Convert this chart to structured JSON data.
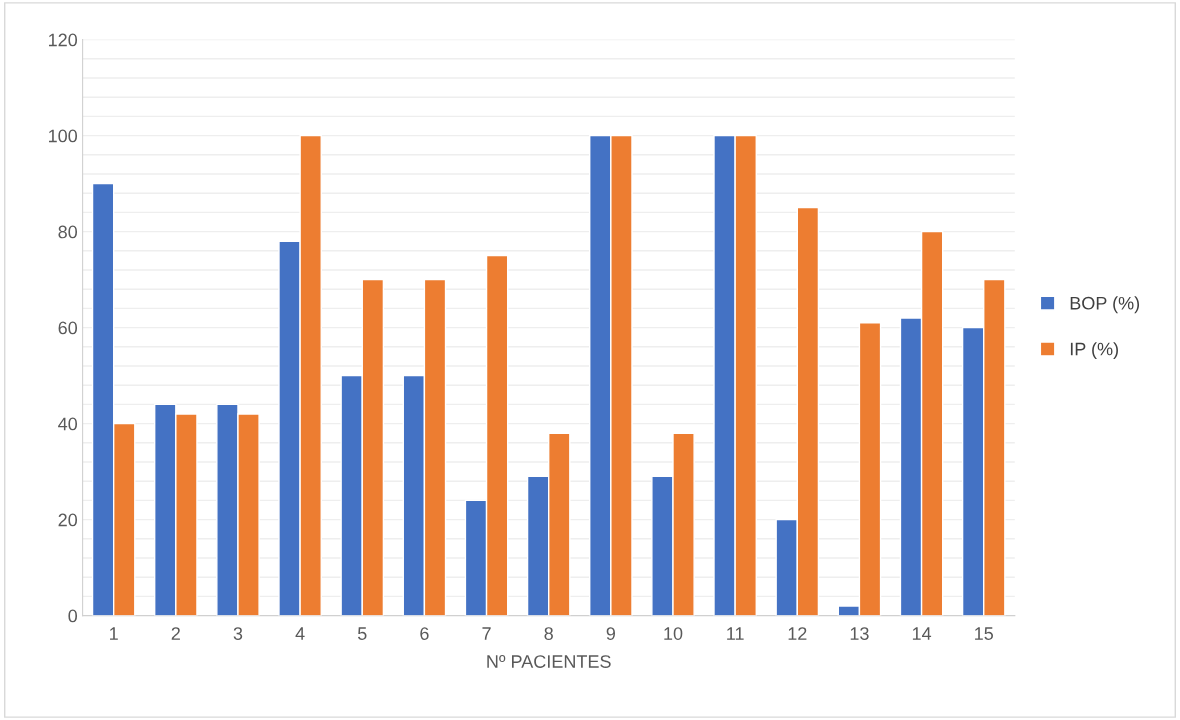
{
  "chart_data": {
    "type": "bar",
    "categories": [
      "1",
      "2",
      "3",
      "4",
      "5",
      "6",
      "7",
      "8",
      "9",
      "10",
      "11",
      "12",
      "13",
      "14",
      "15"
    ],
    "series": [
      {
        "name": "BOP (%)",
        "color": "#4472c4",
        "values": [
          90,
          44,
          44,
          78,
          50,
          50,
          24,
          29,
          100,
          29,
          100,
          20,
          2,
          62,
          60
        ]
      },
      {
        "name": "IP (%)",
        "color": "#ed7d31",
        "values": [
          40,
          42,
          42,
          100,
          70,
          70,
          75,
          38,
          100,
          38,
          100,
          85,
          61,
          80,
          70
        ]
      }
    ],
    "xlabel": "Nº PACIENTES",
    "ylim": [
      0,
      120
    ],
    "yticks": [
      0,
      20,
      40,
      60,
      80,
      100,
      120
    ],
    "grid": "y",
    "legend": "right"
  }
}
